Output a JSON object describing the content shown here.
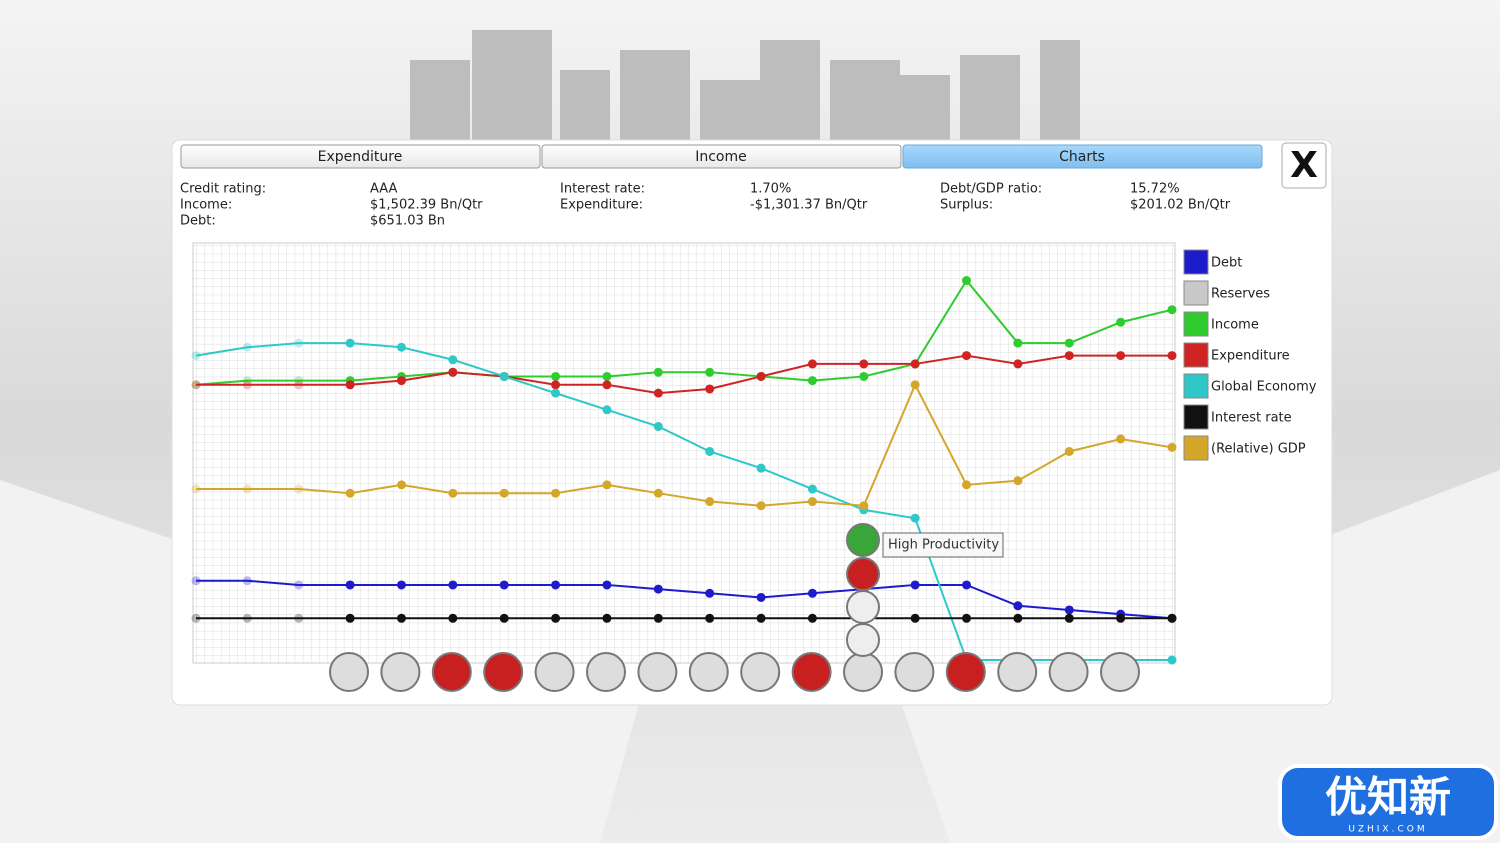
{
  "tabs": [
    "Expenditure",
    "Income",
    "Charts"
  ],
  "active_tab": 2,
  "close": "X",
  "stats": [
    [
      "Credit rating:",
      "AAA",
      "Interest rate:",
      "1.70%",
      "Debt/GDP ratio:",
      "15.72%"
    ],
    [
      "Income:",
      "$1,502.39 Bn/Qtr",
      "Expenditure:",
      "-$1,301.37 Bn/Qtr",
      "Surplus:",
      "$201.02 Bn/Qtr"
    ],
    [
      "Debt:",
      "$651.03 Bn"
    ]
  ],
  "tooltip": "High Productivity",
  "watermark": {
    "title": "优知新",
    "subtitle": "UZHIX.COM"
  },
  "chart_data": {
    "type": "line",
    "ylim": [
      0,
      100
    ],
    "grid": true,
    "x": [
      1,
      2,
      3,
      4,
      5,
      6,
      7,
      8,
      9,
      10,
      11,
      12,
      13,
      14,
      15,
      16,
      17,
      18,
      19,
      20
    ],
    "series": [
      {
        "name": "Debt",
        "color": "#1c1ccc",
        "values": [
          19,
          19,
          18,
          18,
          18,
          18,
          18,
          18,
          18,
          17,
          16,
          15,
          16,
          17,
          18,
          18,
          13,
          12,
          11,
          10
        ]
      },
      {
        "name": "Reserves",
        "color": "#c8c8c8",
        "values": [
          null,
          null,
          null,
          null,
          null,
          null,
          null,
          null,
          null,
          null,
          null,
          null,
          null,
          null,
          null,
          null,
          null,
          null,
          null,
          null
        ]
      },
      {
        "name": "Income",
        "color": "#2ecc2e",
        "values": [
          66,
          67,
          67,
          67,
          68,
          69,
          68,
          68,
          68,
          69,
          69,
          68,
          67,
          68,
          71,
          91,
          76,
          76,
          81,
          84
        ]
      },
      {
        "name": "Expenditure",
        "color": "#d02424",
        "values": [
          66,
          66,
          66,
          66,
          67,
          69,
          68,
          66,
          66,
          64,
          65,
          68,
          71,
          71,
          71,
          73,
          71,
          73,
          73,
          73
        ]
      },
      {
        "name": "Global Economy",
        "color": "#2ec8c8",
        "values": [
          73,
          75,
          76,
          76,
          75,
          72,
          68,
          64,
          60,
          56,
          50,
          46,
          41,
          36,
          34,
          0,
          0,
          0,
          0,
          0
        ]
      },
      {
        "name": "Interest rate",
        "color": "#111111",
        "values": [
          10,
          10,
          10,
          10,
          10,
          10,
          10,
          10,
          10,
          10,
          10,
          10,
          10,
          10,
          10,
          10,
          10,
          10,
          10,
          10
        ]
      },
      {
        "name": "(Relative) GDP",
        "color": "#d4a62a",
        "values": [
          41,
          41,
          41,
          40,
          42,
          40,
          40,
          40,
          42,
          40,
          38,
          37,
          38,
          37,
          66,
          42,
          43,
          50,
          53,
          51
        ]
      }
    ]
  }
}
